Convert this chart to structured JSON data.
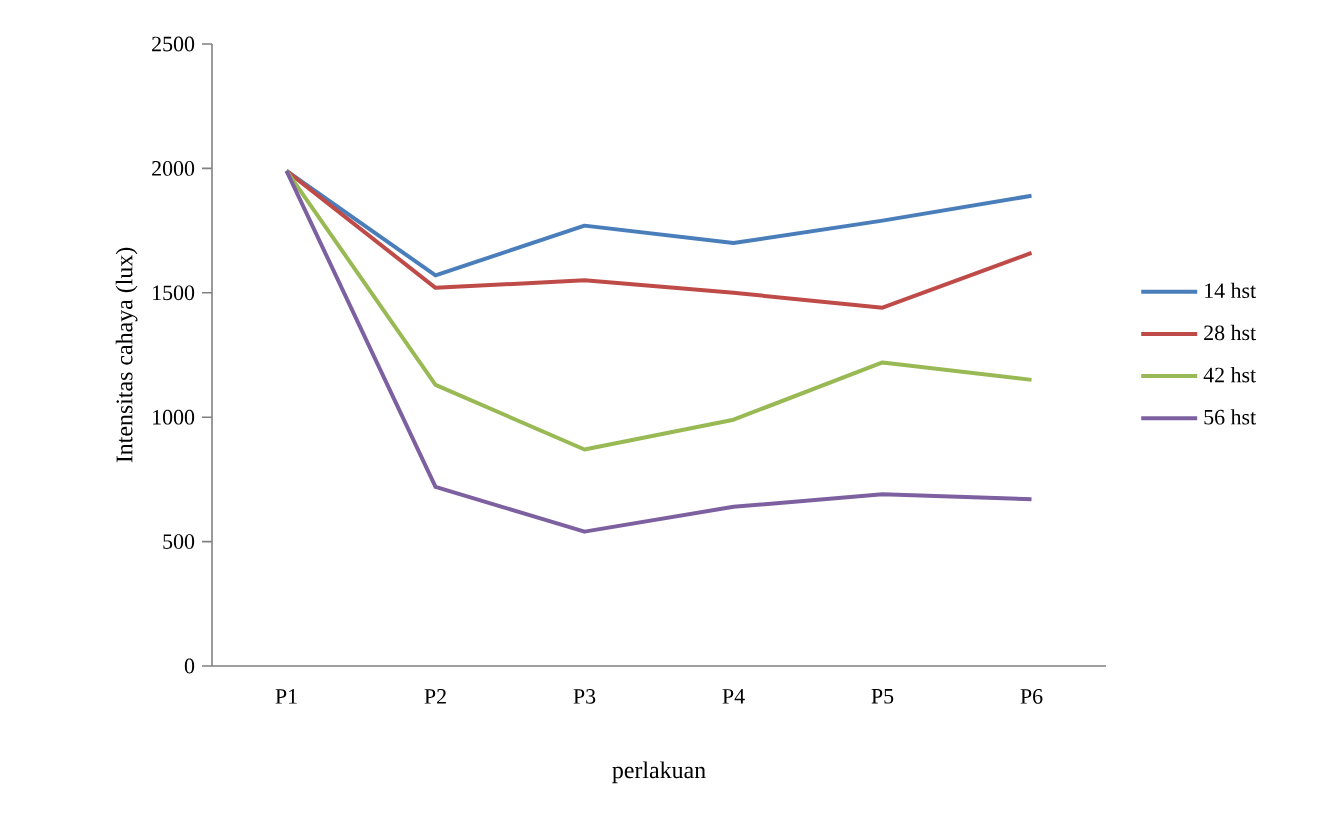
{
  "chart_data": {
    "type": "line",
    "xlabel": "perlakuan",
    "ylabel": "Intensitas cahaya (lux)",
    "categories": [
      "P1",
      "P2",
      "P3",
      "P4",
      "P5",
      "P6"
    ],
    "series": [
      {
        "name": "14 hst",
        "color": "#4a7ebb",
        "values": [
          1990,
          1570,
          1770,
          1700,
          1790,
          1890
        ]
      },
      {
        "name": "28 hst",
        "color": "#be4b48",
        "values": [
          1990,
          1520,
          1550,
          1500,
          1440,
          1660
        ]
      },
      {
        "name": "42 hst",
        "color": "#98b954",
        "values": [
          1990,
          1130,
          870,
          990,
          1220,
          1150
        ]
      },
      {
        "name": "56 hst",
        "color": "#7d60a0",
        "values": [
          1990,
          720,
          540,
          640,
          690,
          670
        ]
      }
    ],
    "ylim": [
      0,
      2500
    ],
    "yticks": [
      0,
      500,
      1000,
      1500,
      2000,
      2500
    ],
    "grid": false,
    "legend": "right",
    "marker": "none",
    "line_style": "solid"
  }
}
